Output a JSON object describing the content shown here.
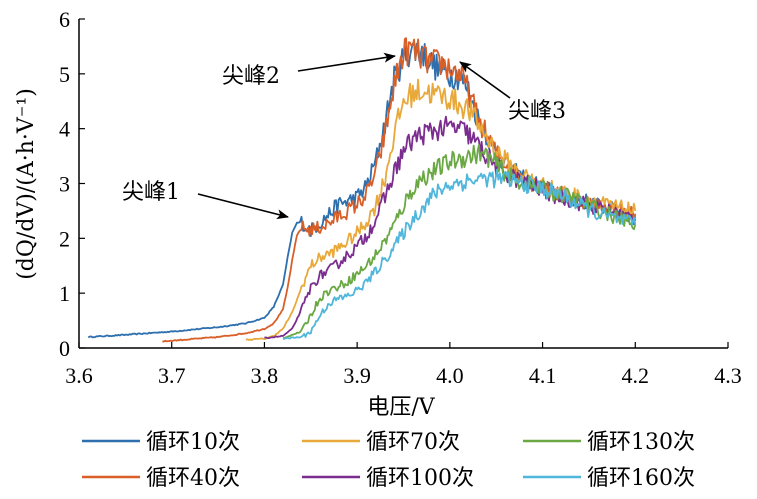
{
  "chart_data": {
    "type": "line",
    "xlabel": "电压/V",
    "ylabel": "(dQ/dV)/(A·h·V⁻¹)",
    "xlim": [
      3.6,
      4.3
    ],
    "ylim": [
      0,
      6
    ],
    "xticks": [
      "3.6",
      "3.7",
      "3.8",
      "3.9",
      "4.0",
      "4.1",
      "4.2",
      "4.3"
    ],
    "yticks": [
      "0",
      "1",
      "2",
      "3",
      "4",
      "5",
      "6"
    ],
    "grid": false,
    "legend_position": "bottom",
    "series": [
      {
        "name": "循环10次",
        "color": "#2e6fad",
        "x": [
          3.61,
          3.65,
          3.7,
          3.75,
          3.78,
          3.8,
          3.81,
          3.82,
          3.825,
          3.83,
          3.835,
          3.84,
          3.845,
          3.85,
          3.86,
          3.87,
          3.88,
          3.89,
          3.9,
          3.91,
          3.92,
          3.93,
          3.94,
          3.95,
          3.96,
          3.97,
          3.98,
          3.99,
          4.0,
          4.01,
          4.02,
          4.03,
          4.05,
          4.07,
          4.09,
          4.11,
          4.13,
          4.15,
          4.17,
          4.2
        ],
        "y": [
          0.2,
          0.24,
          0.3,
          0.38,
          0.45,
          0.55,
          0.75,
          1.15,
          1.65,
          2.1,
          2.28,
          2.3,
          2.2,
          2.15,
          2.28,
          2.45,
          2.62,
          2.68,
          2.75,
          2.95,
          3.4,
          4.1,
          4.9,
          5.3,
          5.45,
          5.4,
          5.2,
          5.05,
          5.0,
          4.95,
          4.7,
          4.2,
          3.55,
          3.2,
          3.0,
          2.85,
          2.75,
          2.65,
          2.55,
          2.4
        ]
      },
      {
        "name": "循环40次",
        "color": "#d95f28",
        "x": [
          3.69,
          3.72,
          3.75,
          3.78,
          3.8,
          3.81,
          3.82,
          3.825,
          3.83,
          3.835,
          3.84,
          3.85,
          3.86,
          3.87,
          3.88,
          3.89,
          3.9,
          3.91,
          3.92,
          3.93,
          3.94,
          3.95,
          3.96,
          3.97,
          3.98,
          3.99,
          4.0,
          4.01,
          4.02,
          4.03,
          4.05,
          4.07,
          4.09,
          4.11,
          4.13,
          4.15,
          4.17,
          4.2
        ],
        "y": [
          0.12,
          0.16,
          0.2,
          0.27,
          0.35,
          0.45,
          0.7,
          1.1,
          1.6,
          2.05,
          2.2,
          2.15,
          2.2,
          2.28,
          2.4,
          2.5,
          2.62,
          2.8,
          3.2,
          3.9,
          4.8,
          5.4,
          5.45,
          5.3,
          5.2,
          5.2,
          5.1,
          5.0,
          4.7,
          4.2,
          3.55,
          3.2,
          3.0,
          2.85,
          2.75,
          2.65,
          2.55,
          2.45
        ]
      },
      {
        "name": "循环70次",
        "color": "#e8a83a",
        "x": [
          3.78,
          3.8,
          3.81,
          3.82,
          3.83,
          3.84,
          3.85,
          3.86,
          3.87,
          3.88,
          3.89,
          3.9,
          3.91,
          3.92,
          3.93,
          3.94,
          3.95,
          3.96,
          3.97,
          3.98,
          3.99,
          4.0,
          4.01,
          4.02,
          4.03,
          4.05,
          4.07,
          4.09,
          4.11,
          4.13,
          4.15,
          4.17,
          4.2
        ],
        "y": [
          0.15,
          0.17,
          0.22,
          0.35,
          0.65,
          1.1,
          1.5,
          1.65,
          1.72,
          1.82,
          1.95,
          2.1,
          2.3,
          2.6,
          3.1,
          3.9,
          4.5,
          4.65,
          4.7,
          4.65,
          4.6,
          4.55,
          4.45,
          4.35,
          4.1,
          3.6,
          3.25,
          3.05,
          2.9,
          2.8,
          2.7,
          2.6,
          2.5
        ]
      },
      {
        "name": "循环100次",
        "color": "#7b2d8f",
        "x": [
          3.8,
          3.82,
          3.83,
          3.84,
          3.85,
          3.86,
          3.87,
          3.88,
          3.89,
          3.9,
          3.91,
          3.92,
          3.93,
          3.94,
          3.95,
          3.96,
          3.97,
          3.98,
          3.99,
          4.0,
          4.01,
          4.02,
          4.03,
          4.04,
          4.05,
          4.07,
          4.09,
          4.11,
          4.13,
          4.15,
          4.17,
          4.2
        ],
        "y": [
          0.18,
          0.22,
          0.35,
          0.7,
          1.1,
          1.32,
          1.42,
          1.55,
          1.7,
          1.85,
          2.05,
          2.35,
          2.75,
          3.2,
          3.6,
          3.8,
          3.9,
          3.95,
          4.0,
          4.02,
          4.0,
          3.9,
          3.7,
          3.5,
          3.3,
          3.1,
          2.95,
          2.8,
          2.7,
          2.6,
          2.5,
          2.35
        ]
      },
      {
        "name": "循环130次",
        "color": "#6aa844",
        "x": [
          3.82,
          3.84,
          3.85,
          3.86,
          3.87,
          3.88,
          3.89,
          3.9,
          3.91,
          3.92,
          3.93,
          3.94,
          3.95,
          3.96,
          3.97,
          3.98,
          3.99,
          4.0,
          4.01,
          4.02,
          4.03,
          4.04,
          4.05,
          4.06,
          4.07,
          4.09,
          4.11,
          4.13,
          4.15,
          4.17,
          4.2
        ],
        "y": [
          0.18,
          0.3,
          0.6,
          0.92,
          1.05,
          1.12,
          1.22,
          1.35,
          1.5,
          1.7,
          1.95,
          2.25,
          2.6,
          2.9,
          3.1,
          3.2,
          3.3,
          3.4,
          3.45,
          3.5,
          3.55,
          3.5,
          3.35,
          3.2,
          3.05,
          2.95,
          2.85,
          2.75,
          2.6,
          2.45,
          2.25
        ]
      },
      {
        "name": "循环160次",
        "color": "#4fb6dc",
        "x": [
          3.82,
          3.84,
          3.85,
          3.86,
          3.87,
          3.88,
          3.89,
          3.9,
          3.91,
          3.92,
          3.93,
          3.94,
          3.95,
          3.96,
          3.97,
          3.98,
          3.99,
          4.0,
          4.02,
          4.04,
          4.06,
          4.08,
          4.1,
          4.12,
          4.14,
          4.16,
          4.18,
          4.2
        ],
        "y": [
          0.17,
          0.2,
          0.3,
          0.6,
          0.82,
          0.9,
          0.95,
          1.05,
          1.2,
          1.4,
          1.62,
          1.85,
          2.1,
          2.35,
          2.55,
          2.75,
          2.9,
          2.98,
          3.05,
          3.1,
          3.08,
          3.0,
          2.9,
          2.8,
          2.6,
          2.45,
          2.35,
          2.25
        ]
      }
    ],
    "annotations": [
      {
        "text": "尖峰1",
        "x": 3.84,
        "y": 2.3
      },
      {
        "text": "尖峰2",
        "x": 3.95,
        "y": 5.4
      },
      {
        "text": "尖峰3",
        "x": 4.0,
        "y": 5.3
      }
    ]
  }
}
